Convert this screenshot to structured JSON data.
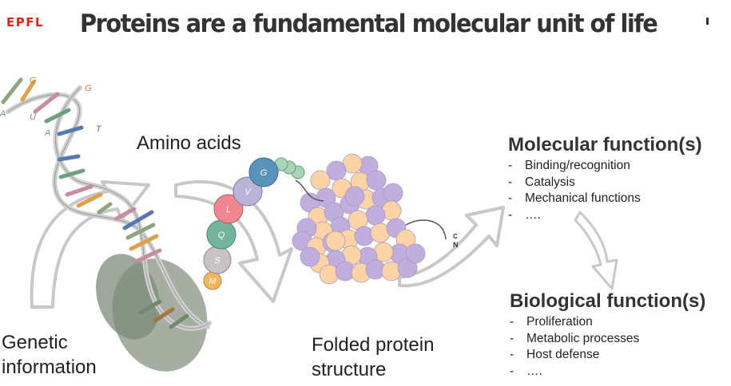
{
  "slide": {
    "logo": "EPFL",
    "title": "Proteins are a fundamental molecular unit of life"
  },
  "labels": {
    "amino_acids": "Amino acids",
    "genetic_information": [
      "Genetic",
      "information"
    ],
    "folded_protein": [
      "Folded protein",
      "structure"
    ]
  },
  "dna_bases": [
    "G",
    "A",
    "U",
    "G",
    "A",
    "T"
  ],
  "amino_acid_chain": [
    "M",
    "S",
    "Q",
    "L",
    "V",
    "G"
  ],
  "terminus": {
    "c": "C",
    "n": "N"
  },
  "molecular": {
    "heading": "Molecular function(s)",
    "items": [
      "Binding/recognition",
      "Catalysis",
      "Mechanical functions",
      "…."
    ]
  },
  "biological": {
    "heading": "Biological function(s)",
    "items": [
      "Proliferation",
      "Metabolic processes",
      "Host defense",
      "…."
    ]
  },
  "colors": {
    "logo": "#e2231a",
    "bead_purple": "#bfaede",
    "bead_orange": "#fbd3a4",
    "aa_orange": "#f4b55a",
    "aa_grey": "#c8c3c6",
    "aa_green": "#72b59b",
    "aa_pink": "#f0868f",
    "aa_lavender": "#b8b5d8",
    "aa_blue": "#5a93ba"
  }
}
